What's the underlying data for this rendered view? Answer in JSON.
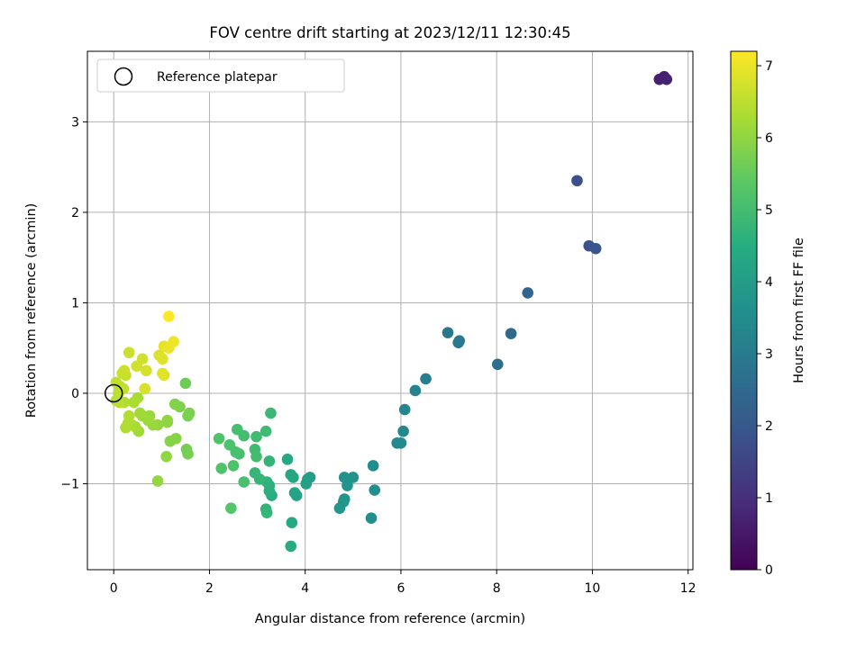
{
  "chart_data": {
    "type": "scatter",
    "title": "FOV centre drift starting at 2023/12/11 12:30:45",
    "xlabel": "Angular distance from reference (arcmin)",
    "ylabel": "Rotation from reference (arcmin)",
    "xlim": [
      -0.55,
      12.1
    ],
    "ylim": [
      -1.95,
      3.78
    ],
    "xticks": [
      0,
      2,
      4,
      6,
      8,
      10,
      12
    ],
    "yticks": [
      -1,
      0,
      1,
      2,
      3
    ],
    "ytick_labels": [
      "−1",
      "0",
      "1",
      "2",
      "3"
    ],
    "grid": true,
    "legend": {
      "placement": "upper-left",
      "entries": [
        "Reference platepar"
      ]
    },
    "reference_point": {
      "x": 0,
      "y": 0
    },
    "colorbar": {
      "label": "Hours from first FF file",
      "range": [
        0,
        7.2
      ],
      "ticks": [
        0,
        1,
        2,
        3,
        4,
        5,
        6,
        7
      ],
      "colormap": "viridis"
    },
    "series": [
      {
        "color_by": "hours",
        "points": [
          {
            "x": 11.4,
            "y": 3.47,
            "c": 0.6
          },
          {
            "x": 11.5,
            "y": 3.5,
            "c": 0.65
          },
          {
            "x": 11.55,
            "y": 3.47,
            "c": 0.7
          },
          {
            "x": 9.68,
            "y": 2.35,
            "c": 1.75
          },
          {
            "x": 9.93,
            "y": 1.63,
            "c": 1.85
          },
          {
            "x": 10.07,
            "y": 1.6,
            "c": 1.9
          },
          {
            "x": 8.65,
            "y": 1.11,
            "c": 2.35
          },
          {
            "x": 8.3,
            "y": 0.66,
            "c": 2.5
          },
          {
            "x": 8.02,
            "y": 0.32,
            "c": 2.6
          },
          {
            "x": 6.98,
            "y": 0.67,
            "c": 2.85
          },
          {
            "x": 7.2,
            "y": 0.56,
            "c": 2.9
          },
          {
            "x": 7.22,
            "y": 0.58,
            "c": 2.95
          },
          {
            "x": 6.52,
            "y": 0.16,
            "c": 3.1
          },
          {
            "x": 6.3,
            "y": 0.03,
            "c": 3.2
          },
          {
            "x": 6.08,
            "y": -0.18,
            "c": 3.3
          },
          {
            "x": 6.05,
            "y": -0.42,
            "c": 3.35
          },
          {
            "x": 5.92,
            "y": -0.55,
            "c": 3.4
          },
          {
            "x": 6.0,
            "y": -0.55,
            "c": 3.45
          },
          {
            "x": 5.42,
            "y": -0.8,
            "c": 3.5
          },
          {
            "x": 5.45,
            "y": -1.07,
            "c": 3.55
          },
          {
            "x": 5.38,
            "y": -1.38,
            "c": 3.6
          },
          {
            "x": 5.0,
            "y": -0.93,
            "c": 3.65
          },
          {
            "x": 4.82,
            "y": -0.93,
            "c": 3.7
          },
          {
            "x": 4.88,
            "y": -1.02,
            "c": 3.72
          },
          {
            "x": 4.82,
            "y": -1.17,
            "c": 3.75
          },
          {
            "x": 4.8,
            "y": -1.2,
            "c": 3.78
          },
          {
            "x": 4.72,
            "y": -1.27,
            "c": 3.8
          },
          {
            "x": 4.1,
            "y": -0.93,
            "c": 4.0
          },
          {
            "x": 4.05,
            "y": -0.95,
            "c": 4.05
          },
          {
            "x": 4.02,
            "y": -1.0,
            "c": 4.1
          },
          {
            "x": 3.82,
            "y": -1.13,
            "c": 4.15
          },
          {
            "x": 3.78,
            "y": -1.1,
            "c": 4.2
          },
          {
            "x": 3.7,
            "y": -0.9,
            "c": 4.25
          },
          {
            "x": 3.75,
            "y": -0.93,
            "c": 4.3
          },
          {
            "x": 3.63,
            "y": -0.73,
            "c": 4.35
          },
          {
            "x": 3.72,
            "y": -1.43,
            "c": 4.4
          },
          {
            "x": 3.7,
            "y": -1.69,
            "c": 4.45
          },
          {
            "x": 3.3,
            "y": -1.13,
            "c": 4.5
          },
          {
            "x": 3.25,
            "y": -1.08,
            "c": 4.55
          },
          {
            "x": 3.25,
            "y": -1.02,
            "c": 4.6
          },
          {
            "x": 3.2,
            "y": -0.98,
            "c": 4.65
          },
          {
            "x": 3.25,
            "y": -0.75,
            "c": 4.7
          },
          {
            "x": 3.18,
            "y": -1.28,
            "c": 4.7
          },
          {
            "x": 3.2,
            "y": -1.32,
            "c": 4.75
          },
          {
            "x": 3.05,
            "y": -0.95,
            "c": 4.75
          },
          {
            "x": 2.95,
            "y": -0.88,
            "c": 4.8
          },
          {
            "x": 3.28,
            "y": -0.22,
            "c": 4.85
          },
          {
            "x": 3.18,
            "y": -0.42,
            "c": 4.9
          },
          {
            "x": 2.98,
            "y": -0.48,
            "c": 4.95
          },
          {
            "x": 2.95,
            "y": -0.62,
            "c": 4.95
          },
          {
            "x": 2.98,
            "y": -0.7,
            "c": 5.0
          },
          {
            "x": 2.72,
            "y": -0.47,
            "c": 5.0
          },
          {
            "x": 2.58,
            "y": -0.4,
            "c": 5.05
          },
          {
            "x": 2.62,
            "y": -0.67,
            "c": 5.05
          },
          {
            "x": 2.55,
            "y": -0.65,
            "c": 5.1
          },
          {
            "x": 2.72,
            "y": -0.98,
            "c": 5.1
          },
          {
            "x": 2.5,
            "y": -0.8,
            "c": 5.15
          },
          {
            "x": 2.42,
            "y": -0.57,
            "c": 5.15
          },
          {
            "x": 2.2,
            "y": -0.5,
            "c": 5.2
          },
          {
            "x": 2.25,
            "y": -0.83,
            "c": 5.2
          },
          {
            "x": 2.45,
            "y": -1.27,
            "c": 5.25
          },
          {
            "x": 1.5,
            "y": 0.11,
            "c": 5.6
          },
          {
            "x": 1.52,
            "y": -0.62,
            "c": 5.65
          },
          {
            "x": 1.55,
            "y": -0.67,
            "c": 5.7
          },
          {
            "x": 1.58,
            "y": -0.22,
            "c": 5.75
          },
          {
            "x": 1.55,
            "y": -0.25,
            "c": 5.75
          },
          {
            "x": 1.38,
            "y": -0.15,
            "c": 5.8
          },
          {
            "x": 1.28,
            "y": -0.12,
            "c": 5.85
          },
          {
            "x": 1.3,
            "y": -0.5,
            "c": 5.9
          },
          {
            "x": 1.18,
            "y": -0.53,
            "c": 5.9
          },
          {
            "x": 1.12,
            "y": -0.32,
            "c": 5.95
          },
          {
            "x": 1.12,
            "y": -0.3,
            "c": 6.0
          },
          {
            "x": 1.1,
            "y": -0.7,
            "c": 6.0
          },
          {
            "x": 0.92,
            "y": -0.97,
            "c": 6.05
          },
          {
            "x": 0.92,
            "y": -0.35,
            "c": 6.05
          },
          {
            "x": 0.82,
            "y": -0.35,
            "c": 6.1
          },
          {
            "x": 0.75,
            "y": -0.25,
            "c": 6.1
          },
          {
            "x": 0.72,
            "y": -0.3,
            "c": 6.15
          },
          {
            "x": 0.6,
            "y": -0.25,
            "c": 6.15
          },
          {
            "x": 0.55,
            "y": -0.22,
            "c": 6.2
          },
          {
            "x": 0.52,
            "y": -0.42,
            "c": 6.2
          },
          {
            "x": 0.45,
            "y": -0.37,
            "c": 6.25
          },
          {
            "x": 0.5,
            "y": -0.05,
            "c": 6.25
          },
          {
            "x": 0.42,
            "y": -0.1,
            "c": 6.3
          },
          {
            "x": 0.38,
            "y": -0.35,
            "c": 6.3
          },
          {
            "x": 0.3,
            "y": -0.33,
            "c": 6.35
          },
          {
            "x": 0.25,
            "y": -0.38,
            "c": 6.35
          },
          {
            "x": 0.32,
            "y": -0.25,
            "c": 6.4
          },
          {
            "x": 0.22,
            "y": -0.1,
            "c": 6.4
          },
          {
            "x": 0.12,
            "y": -0.1,
            "c": 6.45
          },
          {
            "x": 0.05,
            "y": -0.08,
            "c": 6.45
          },
          {
            "x": 0.1,
            "y": 0.0,
            "c": 6.5
          },
          {
            "x": 0.12,
            "y": 0.08,
            "c": 6.5
          },
          {
            "x": 0.05,
            "y": 0.12,
            "c": 6.55
          },
          {
            "x": 0.2,
            "y": 0.05,
            "c": 6.55
          },
          {
            "x": 0.18,
            "y": 0.22,
            "c": 6.6
          },
          {
            "x": 0.25,
            "y": 0.2,
            "c": 6.6
          },
          {
            "x": 0.22,
            "y": 0.25,
            "c": 6.65
          },
          {
            "x": 0.32,
            "y": 0.45,
            "c": 6.65
          },
          {
            "x": 0.48,
            "y": 0.3,
            "c": 6.7
          },
          {
            "x": 0.6,
            "y": 0.38,
            "c": 6.7
          },
          {
            "x": 0.68,
            "y": 0.25,
            "c": 6.75
          },
          {
            "x": 0.65,
            "y": 0.05,
            "c": 6.75
          },
          {
            "x": 0.95,
            "y": 0.42,
            "c": 6.8
          },
          {
            "x": 1.02,
            "y": 0.38,
            "c": 6.85
          },
          {
            "x": 1.05,
            "y": 0.2,
            "c": 6.85
          },
          {
            "x": 1.02,
            "y": 0.22,
            "c": 6.9
          },
          {
            "x": 1.05,
            "y": 0.52,
            "c": 6.95
          },
          {
            "x": 1.15,
            "y": 0.5,
            "c": 7.0
          },
          {
            "x": 1.25,
            "y": 0.57,
            "c": 7.05
          },
          {
            "x": 1.15,
            "y": 0.85,
            "c": 7.2
          }
        ]
      }
    ]
  }
}
